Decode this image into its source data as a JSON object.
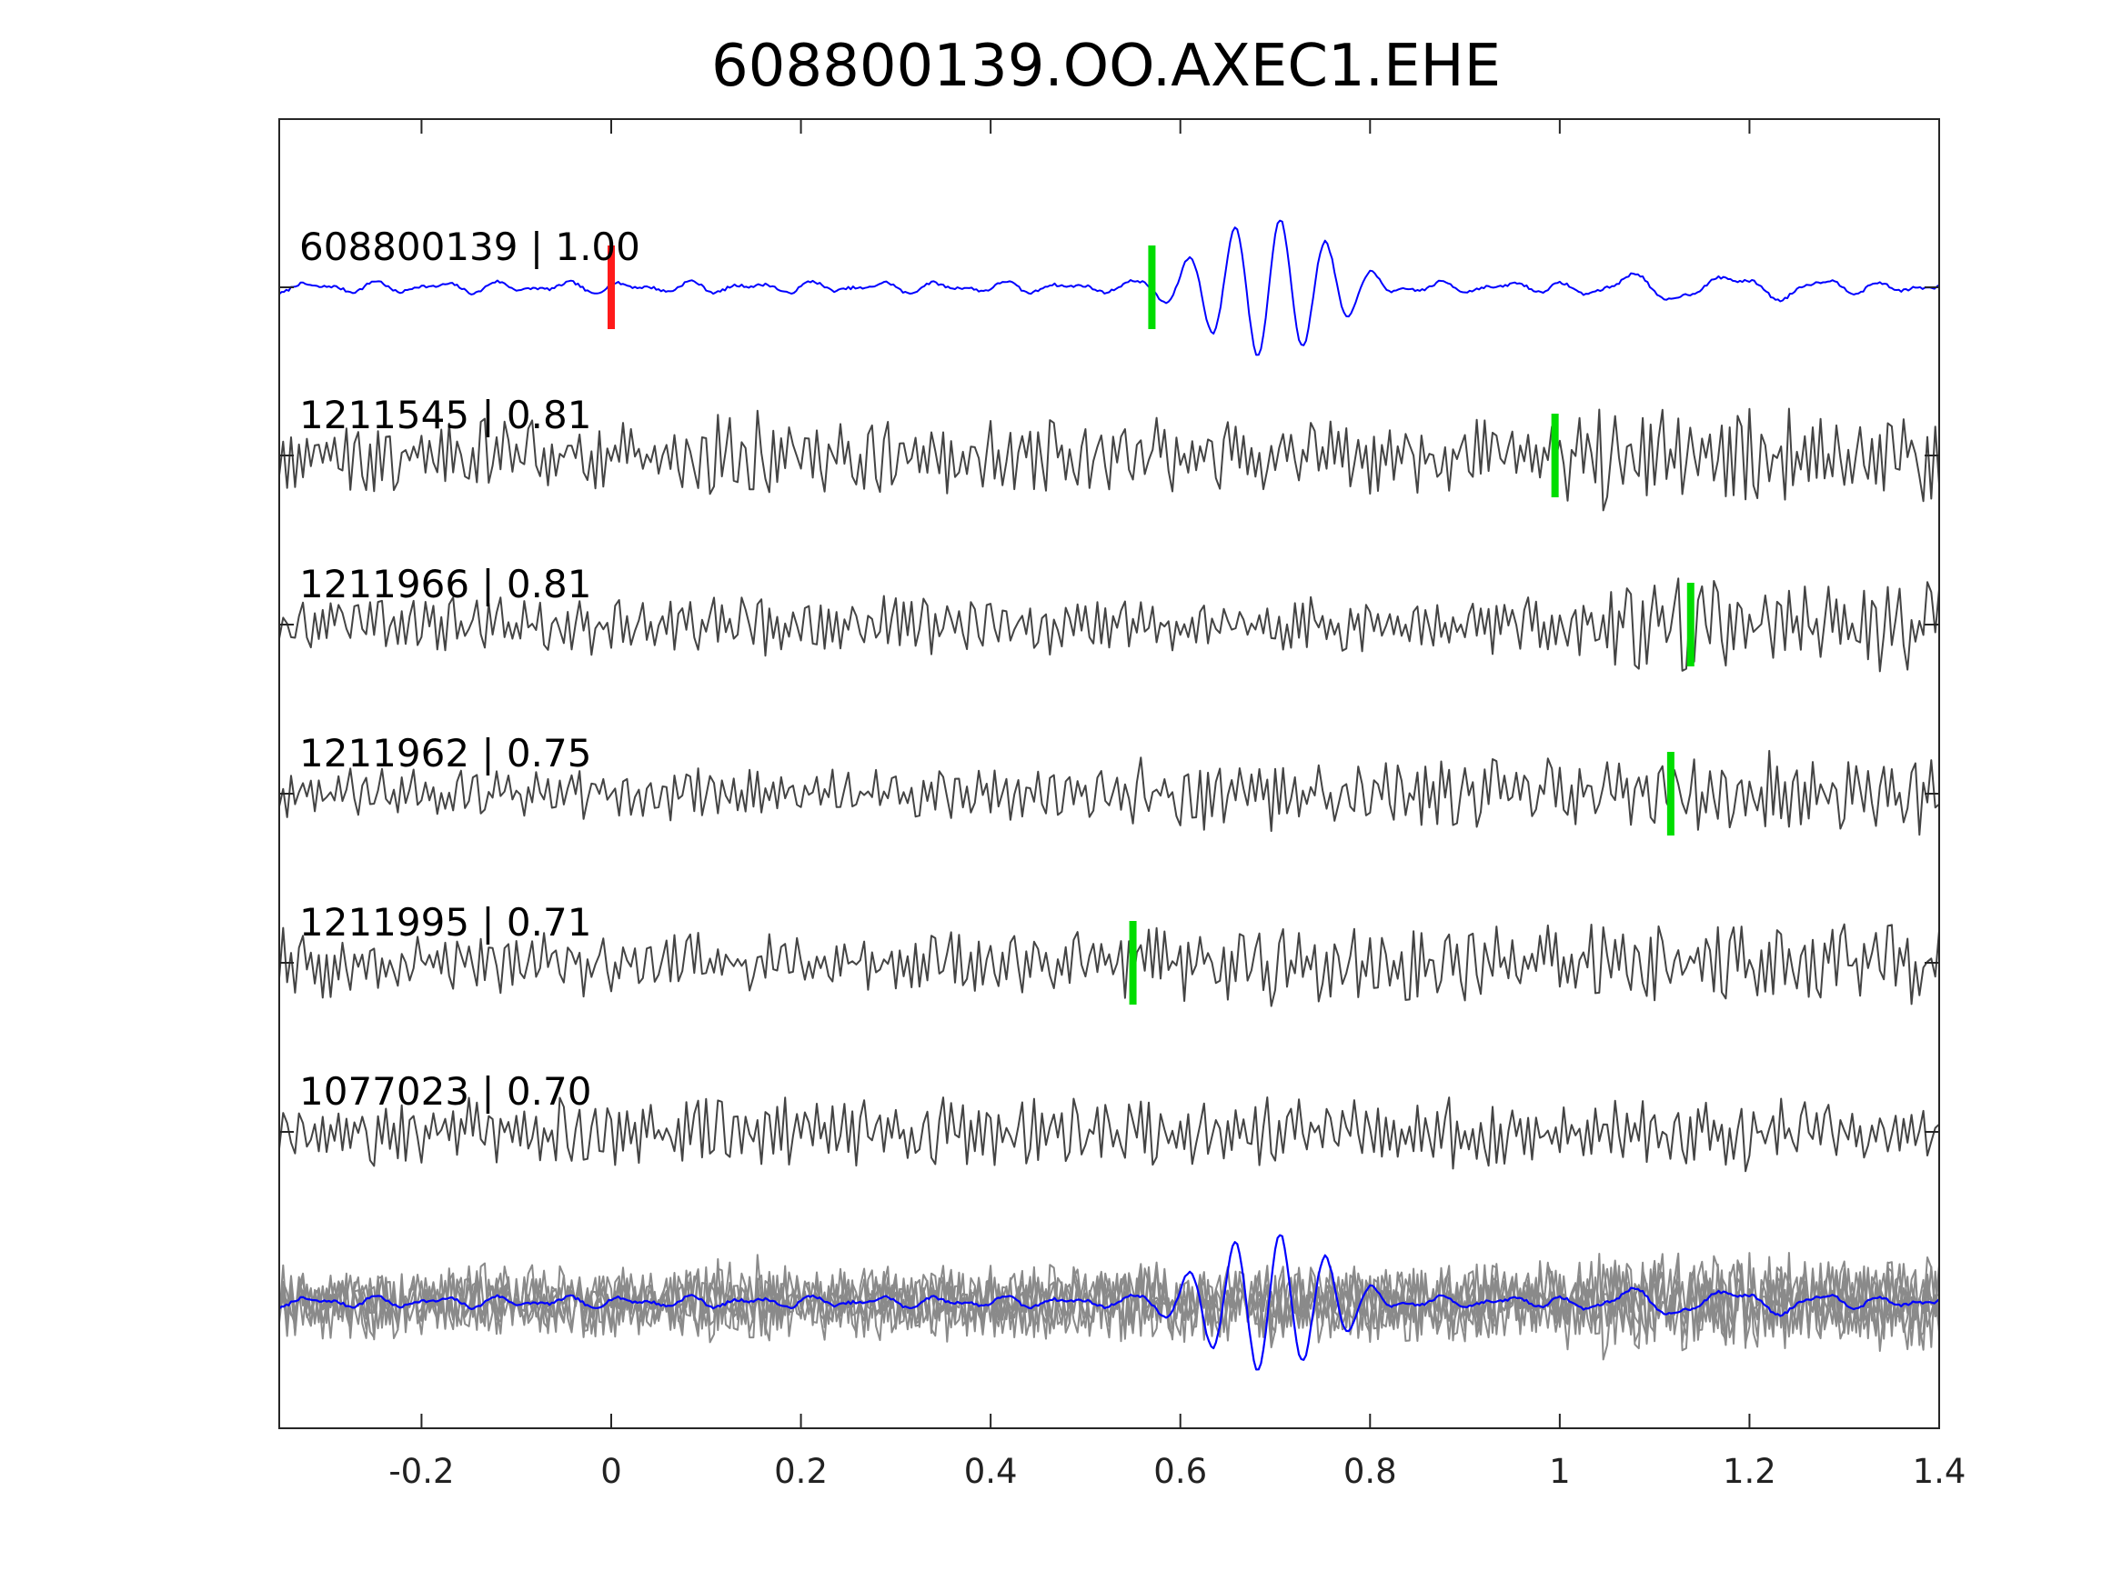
{
  "chart_data": {
    "type": "line",
    "title": "608800139.OO.AXEC1.EHE",
    "xlabel": "",
    "ylabel": "",
    "xlim": [
      -0.35,
      1.4
    ],
    "xticks": [
      -0.2,
      0,
      0.2,
      0.4,
      0.6,
      0.8,
      1,
      1.2,
      1.4
    ],
    "xtick_labels": [
      "-0.2",
      "0",
      "0.2",
      "0.4",
      "0.6",
      "0.8",
      "1",
      "1.2",
      "1.4"
    ],
    "grid": false,
    "colors": {
      "reference": "#0000ff",
      "trace": "#444444",
      "stack_trace": "#8a8a8a",
      "pick_red": "#ff1a1a",
      "pick_green": "#00dd00",
      "axes": "#262626"
    },
    "series": [
      {
        "name": "608800139",
        "label": "608800139 | 1.00",
        "cc": 1.0,
        "reference": true,
        "picks": [
          {
            "t": 0.0,
            "color": "red"
          },
          {
            "t": 0.57,
            "color": "green"
          }
        ]
      },
      {
        "name": "1211545",
        "label": "1211545 | 0.81",
        "cc": 0.81,
        "picks": [
          {
            "t": 0.995,
            "color": "green"
          }
        ]
      },
      {
        "name": "1211966",
        "label": "1211966 | 0.81",
        "cc": 0.81,
        "picks": [
          {
            "t": 1.138,
            "color": "green"
          }
        ]
      },
      {
        "name": "1211962",
        "label": "1211962 | 0.75",
        "cc": 0.75,
        "picks": [
          {
            "t": 1.117,
            "color": "green"
          }
        ]
      },
      {
        "name": "1211995",
        "label": "1211995 | 0.71",
        "cc": 0.71,
        "picks": [
          {
            "t": 0.55,
            "color": "green"
          }
        ]
      },
      {
        "name": "1077023",
        "label": "1077023 | 0.70",
        "cc": 0.7,
        "picks": []
      }
    ],
    "overlay": {
      "description": "stack of all traces",
      "reference_on_top": true
    }
  }
}
